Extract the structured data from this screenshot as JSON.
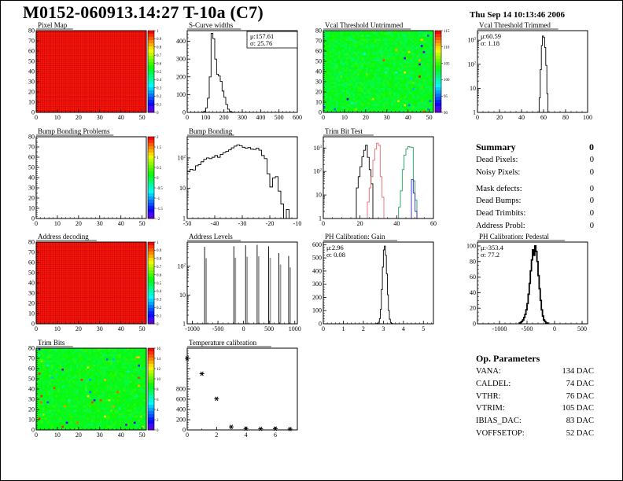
{
  "header": {
    "title": "M0152-060913.14:27 T-10a (C7)",
    "date": "Thu Sep 14 10:13:46 2006"
  },
  "summary": {
    "title": "Summary",
    "total": "0",
    "rows": [
      {
        "label": "Dead Pixels:",
        "value": "0"
      },
      {
        "label": "Noisy Pixels:",
        "value": "0"
      },
      {
        "label": "Mask defects:",
        "value": "0"
      },
      {
        "label": "Dead Bumps:",
        "value": "0"
      },
      {
        "label": "Dead Trimbits:",
        "value": "0"
      },
      {
        "label": "Address Probl:",
        "value": "0"
      }
    ]
  },
  "op_parameters": {
    "title": "Op. Parameters",
    "rows": [
      {
        "label": "VANA:",
        "value": "134 DAC"
      },
      {
        "label": "CALDEL:",
        "value": "74 DAC"
      },
      {
        "label": "VTHR:",
        "value": "76 DAC"
      },
      {
        "label": "VTRIM:",
        "value": "105 DAC"
      },
      {
        "label": "IBIAS_DAC:",
        "value": "83 DAC"
      },
      {
        "label": "VOFFSETOP:",
        "value": "52 DAC"
      }
    ]
  },
  "chart_data": [
    {
      "type": "heatmap",
      "title": "Pixel Map",
      "x_range": [
        0,
        52
      ],
      "x_ticks": [
        0,
        10,
        20,
        30,
        40,
        50
      ],
      "x_minor_step": 2,
      "y_range": [
        0,
        80
      ],
      "y_ticks": [
        0,
        10,
        20,
        30,
        40,
        50,
        60,
        70,
        80
      ],
      "y_minor_step": 2,
      "mode": "uniform",
      "uniform_value": 1,
      "colorbar": true,
      "colorbar_labels": [
        "1",
        "0.9",
        "0.8",
        "0.7",
        "0.6",
        "0.5",
        "0.4",
        "0.3",
        "0.2",
        "0.1",
        "0"
      ],
      "note": "all 52x80 pixels at value 1 (uniform red)"
    },
    {
      "type": "histogram",
      "title": "S-Curve widths",
      "x_range": [
        0,
        600
      ],
      "x_ticks": [
        0,
        100,
        200,
        300,
        400,
        500,
        600
      ],
      "x_minor_step": 20,
      "y_range": [
        0,
        460
      ],
      "y_ticks": [
        0,
        100,
        200,
        300,
        400
      ],
      "y_minor_step": 20,
      "stats": {
        "mu": "μ:157.61",
        "sigma": "σ: 25.76"
      },
      "stats_pos": "right",
      "stats_box": true,
      "series": [
        {
          "color": "#000000",
          "bin_start": 80,
          "bin_width": 10,
          "values": [
            2,
            6,
            25,
            80,
            200,
            445,
            415,
            300,
            215,
            205,
            175,
            120,
            85,
            45,
            18,
            6,
            2
          ]
        }
      ]
    },
    {
      "type": "heatmap",
      "title": "Vcal Threshold Untrimmed",
      "x_range": [
        0,
        52
      ],
      "x_ticks": [
        0,
        10,
        20,
        30,
        40,
        50
      ],
      "x_minor_step": 2,
      "y_range": [
        0,
        80
      ],
      "y_ticks": [
        0,
        10,
        20,
        30,
        40,
        50,
        60,
        70,
        80
      ],
      "y_minor_step": 2,
      "mode": "noise",
      "noise": {
        "seed": 7,
        "mean": 0.54,
        "spread": 0.07,
        "outlier_prob": 0.02
      },
      "colorbar": true,
      "colorbar_labels": [
        "115",
        "110",
        "105",
        "100",
        "95",
        "90"
      ],
      "note": "noisy threshold map ~100 Vcal, green/cyan with red and blue outliers"
    },
    {
      "type": "histogram",
      "title": "Vcal Threshold Trimmed",
      "x_range": [
        0,
        100
      ],
      "x_ticks": [
        0,
        20,
        40,
        60,
        80,
        100
      ],
      "x_minor_step": 5,
      "y_log": true,
      "y_range": [
        1,
        2500
      ],
      "stats": {
        "mu": "μ:60.59",
        "sigma": "σ: 1.18"
      },
      "stats_pos": "left",
      "series": [
        {
          "color": "#000000",
          "bin_start": 55,
          "bin_width": 1,
          "values": [
            1,
            4,
            60,
            600,
            1500,
            1300,
            500,
            90,
            6,
            1
          ]
        }
      ]
    },
    {
      "type": "heatmap",
      "title": "Bump Bonding Problems",
      "x_range": [
        0,
        52
      ],
      "x_ticks": [
        0,
        10,
        20,
        30,
        40,
        50
      ],
      "x_minor_step": 2,
      "y_range": [
        0,
        80
      ],
      "y_ticks": [
        0,
        10,
        20,
        30,
        40,
        50,
        60,
        70,
        80
      ],
      "y_minor_step": 2,
      "mode": "empty",
      "colorbar": true,
      "colorbar_labels": [
        "2",
        "1.5",
        "1",
        "0.5",
        "0",
        "-0.5",
        "-1",
        "-1.5",
        "-2"
      ],
      "note": "no bump bonding problems - empty map"
    },
    {
      "type": "histogram",
      "title": "Bump Bonding",
      "x_range": [
        -50,
        -10
      ],
      "x_ticks": [
        -50,
        -40,
        -30,
        -20,
        -10
      ],
      "x_minor_step": 2,
      "y_log": true,
      "y_range": [
        1,
        500
      ],
      "series": [
        {
          "color": "#000000",
          "bin_start": -50,
          "bin_width": 1,
          "values": [
            35,
            42,
            40,
            55,
            60,
            75,
            90,
            100,
            95,
            105,
            120,
            105,
            130,
            150,
            165,
            185,
            215,
            245,
            270,
            255,
            225,
            210,
            220,
            195,
            190,
            210,
            180,
            120,
            95,
            30,
            11,
            22,
            24,
            8,
            3,
            1,
            2,
            1
          ]
        }
      ]
    },
    {
      "type": "histogram",
      "title": "Trim Bit Test",
      "x_range": [
        0,
        60
      ],
      "x_ticks": [
        0,
        20,
        40,
        60
      ],
      "x_minor_step": 5,
      "y_log": true,
      "y_range": [
        1,
        3000
      ],
      "series": [
        {
          "color": "#000000",
          "bin_start": 17,
          "bin_width": 1,
          "values": [
            1,
            20,
            60,
            160,
            420,
            800,
            1300,
            400,
            120,
            30,
            1
          ]
        },
        {
          "color": "#e66a6a",
          "bin_start": 23,
          "bin_width": 1,
          "values": [
            1,
            5,
            20,
            60,
            300,
            900,
            1600,
            1300,
            60,
            8,
            1
          ]
        },
        {
          "color": "#1ca05c",
          "bin_start": 40,
          "bin_width": 1,
          "values": [
            1,
            3,
            15,
            120,
            500,
            900,
            1150,
            1100,
            1050,
            40,
            6,
            1
          ]
        },
        {
          "color": "#2a2ac8",
          "bin_start": 47,
          "bin_width": 1,
          "values": [
            1,
            45,
            12,
            2
          ]
        }
      ]
    },
    {
      "type": "heatmap",
      "title": "Address decoding",
      "x_range": [
        0,
        52
      ],
      "x_ticks": [
        0,
        10,
        20,
        30,
        40,
        50
      ],
      "x_minor_step": 2,
      "y_range": [
        0,
        80
      ],
      "y_ticks": [
        0,
        10,
        20,
        30,
        40,
        50,
        60,
        70,
        80
      ],
      "y_minor_step": 2,
      "mode": "uniform",
      "uniform_value": 1,
      "colorbar": true,
      "colorbar_labels": [
        "1",
        "0.9",
        "0.8",
        "0.7",
        "0.6",
        "0.5",
        "0.4",
        "0.3",
        "0.2",
        "0.1",
        "0"
      ],
      "note": "all pixels decode correctly (uniform red)"
    },
    {
      "type": "spikes",
      "title": "Address Levels",
      "x_range": [
        -1100,
        1050
      ],
      "x_ticks": [
        -1000,
        -500,
        0,
        500,
        1000
      ],
      "x_minor_step": 100,
      "y_log": true,
      "y_range": [
        1,
        700
      ],
      "spikes": [
        [
          -760,
          480
        ],
        [
          -190,
          500
        ],
        [
          40,
          540
        ],
        [
          265,
          560
        ],
        [
          490,
          500
        ],
        [
          690,
          290
        ],
        [
          880,
          230
        ]
      ]
    },
    {
      "type": "histogram",
      "title": "PH Calibration: Gain",
      "x_range": [
        0,
        5.5
      ],
      "x_ticks": [
        0,
        1,
        2,
        3,
        4,
        5
      ],
      "x_minor_step": 0.2,
      "y_range": [
        0,
        620
      ],
      "y_ticks": [
        0,
        100,
        200,
        300,
        400,
        500,
        600
      ],
      "y_minor_step": 20,
      "stats": {
        "mu": "μ:2.96",
        "sigma": "σ: 0.08"
      },
      "stats_pos": "left",
      "series": [
        {
          "color": "#000000",
          "bin_start": 2.6,
          "bin_width": 0.05,
          "values": [
            1,
            2,
            5,
            12,
            40,
            110,
            260,
            430,
            560,
            590,
            520,
            380,
            220,
            100,
            35,
            10,
            3,
            1
          ]
        }
      ]
    },
    {
      "type": "histogram",
      "title": "PH Calibration: Pedestal",
      "x_range": [
        -1400,
        600
      ],
      "x_ticks": [
        -1000,
        -500,
        0,
        500
      ],
      "x_minor_step": 100,
      "y_range": [
        0,
        105
      ],
      "y_ticks": [
        0,
        20,
        40,
        60,
        80,
        100
      ],
      "y_minor_step": 5,
      "stats": {
        "mu": "μ:-353.4",
        "sigma": "σ: 77.2"
      },
      "stats_pos": "left",
      "thick": true,
      "series": [
        {
          "color": "#000000",
          "bin_start": -640,
          "bin_width": 20,
          "values": [
            1,
            2,
            3,
            5,
            8,
            12,
            18,
            26,
            38,
            52,
            68,
            82,
            95,
            88,
            100,
            93,
            80,
            62,
            45,
            30,
            18,
            10,
            5,
            3,
            1,
            1
          ]
        }
      ]
    },
    {
      "type": "heatmap",
      "title": "Trim Bits",
      "x_range": [
        0,
        52
      ],
      "x_ticks": [
        0,
        10,
        20,
        30,
        40,
        50
      ],
      "x_minor_step": 2,
      "y_range": [
        0,
        80
      ],
      "y_ticks": [
        0,
        10,
        20,
        30,
        40,
        50,
        60,
        70,
        80
      ],
      "y_minor_step": 2,
      "mode": "noise",
      "noise": {
        "seed": 13,
        "mean": 0.55,
        "spread": 0.06,
        "outlier_prob": 0.03
      },
      "colorbar": true,
      "colorbar_labels": [
        "16",
        "14",
        "12",
        "10",
        "8",
        "6",
        "4",
        "2",
        "0"
      ],
      "note": "trim bit map ~8, mostly green with speckles"
    },
    {
      "type": "scatter",
      "title": "Temperature calibration",
      "x_range": [
        0,
        7.5
      ],
      "x_ticks": [
        0,
        2,
        4,
        6
      ],
      "x_minor_step": 1,
      "y_range": [
        0,
        1600
      ],
      "y_ticks": [
        0,
        200,
        400,
        600,
        800
      ],
      "y_ticks_unlabeled": [
        1000,
        1200,
        1400
      ],
      "y_minor_step": 50,
      "points": [
        [
          0,
          1400
        ],
        [
          1,
          1100
        ],
        [
          2,
          610
        ],
        [
          3,
          60
        ],
        [
          4,
          25
        ],
        [
          5,
          22
        ],
        [
          6,
          25
        ],
        [
          7,
          18
        ]
      ]
    }
  ]
}
